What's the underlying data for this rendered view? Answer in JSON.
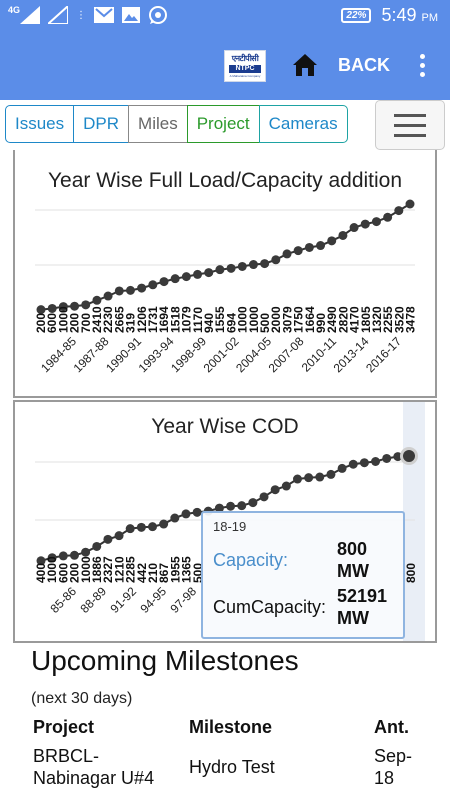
{
  "status_bar": {
    "network": "4G",
    "battery": "22%",
    "time": "5:49",
    "ampm": "PM"
  },
  "header": {
    "logo_text": "एनटीपीसी",
    "logo_brand": "NTPC",
    "logo_tagline": "A Maharatna Company",
    "back_label": "BACK"
  },
  "tabs": [
    {
      "label": "Issues"
    },
    {
      "label": "DPR"
    },
    {
      "label": "Miles"
    },
    {
      "label": "Project"
    },
    {
      "label": "Cameras"
    }
  ],
  "chart_data": [
    {
      "type": "line",
      "title": "Year Wise Full Load/Capacity addition",
      "x_tick_labels": [
        "1984-85",
        "1987-88",
        "1990-91",
        "1993-94",
        "1998-99",
        "2001-02",
        "2004-05",
        "2007-08",
        "2010-11",
        "2013-14",
        "2016-17"
      ],
      "value_labels": [
        "200",
        "600",
        "1000",
        "200",
        "700",
        "2410",
        "2230",
        "2665",
        "319",
        "1206",
        "1731",
        "1694",
        "1518",
        "1079",
        "1170",
        "940",
        "1555",
        "694",
        "1000",
        "1000",
        "500",
        "2000",
        "3079",
        "1750",
        "1664",
        "990",
        "2490",
        "2820",
        "4170",
        "1805",
        "1320",
        "2255",
        "3520",
        "3478"
      ],
      "series": [
        {
          "values": [
            200,
            600,
            1000,
            200,
            700,
            2410,
            2230,
            2665,
            319,
            1206,
            1731,
            1694,
            1518,
            1079,
            1170,
            940,
            1555,
            694,
            1000,
            1000,
            500,
            2000,
            3079,
            1750,
            1664,
            990,
            2490,
            2820,
            4170,
            1805,
            1320,
            2255,
            3520,
            3478
          ]
        }
      ],
      "grid": true,
      "legend": false
    },
    {
      "type": "line",
      "title": "Year Wise COD",
      "x_tick_labels": [
        "85-86",
        "88-89",
        "91-92",
        "94-95",
        "97-98"
      ],
      "value_labels": [
        "400",
        "1000",
        "600",
        "200",
        "1000",
        "1886",
        "2327",
        "1210",
        "2285",
        "442",
        "210",
        "867",
        "1955",
        "1365",
        "500"
      ],
      "series": [
        {
          "values": [
            400,
            1000,
            600,
            200,
            1000,
            1886,
            2327,
            1210,
            2285,
            442,
            210,
            867,
            1955,
            1365,
            500
          ]
        }
      ],
      "last_value_label": "800",
      "grid": true,
      "legend": false,
      "tooltip": {
        "header": "18-19",
        "capacity_label": "Capacity:",
        "capacity_value": "800 MW",
        "cum_label": "CumCapacity:",
        "cum_value": "52191 MW"
      }
    }
  ],
  "milestones": {
    "title": "Upcoming Milestones",
    "subtitle": "(next 30 days)",
    "columns": [
      "Project",
      "Milestone",
      "Ant."
    ],
    "rows": [
      {
        "project": "BRBCL- Nabinagar U#4",
        "milestone": "Hydro Test",
        "ant": "Sep- 18"
      }
    ]
  }
}
